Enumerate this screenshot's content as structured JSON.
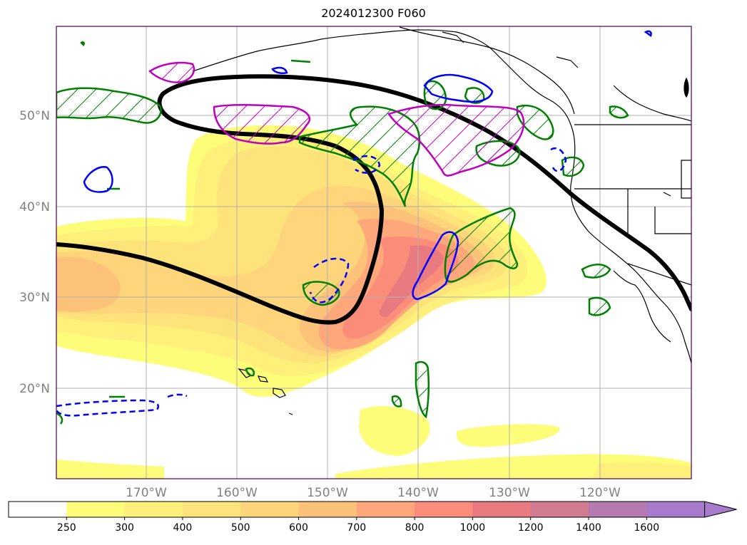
{
  "title": "2024012300 F060",
  "map": {
    "lat_labels": [
      "50°N",
      "40°N",
      "30°N",
      "20°N"
    ],
    "lon_labels": [
      "170°W",
      "160°W",
      "150°W",
      "140°W",
      "130°W",
      "120°W"
    ]
  },
  "colorbar": {
    "levels": [
      "250",
      "300",
      "400",
      "500",
      "600",
      "700",
      "800",
      "1000",
      "1200",
      "1400",
      "1600"
    ],
    "colors": [
      "#ffffff",
      "#fdfd7a",
      "#fef07a",
      "#fee27a",
      "#fed57a",
      "#fdc27a",
      "#fda77a",
      "#fc8c7a",
      "#e87a80",
      "#d27a8f",
      "#b57aaf",
      "#a87acb"
    ],
    "extend": "max"
  },
  "contour_colors": {
    "black_line": "#000000",
    "green": "#008000",
    "blue": "#0000ff",
    "magenta": "#bf00bf"
  }
}
